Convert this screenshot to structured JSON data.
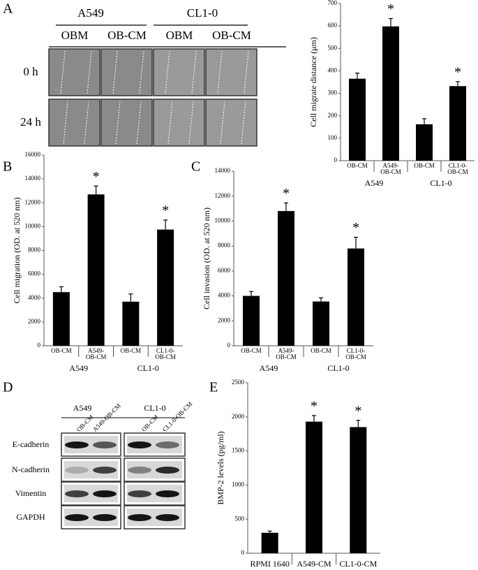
{
  "panel_labels": [
    "A",
    "B",
    "C",
    "D",
    "E"
  ],
  "wound_assay": {
    "groups": [
      "A549",
      "CL1-0"
    ],
    "conditions": [
      "OBM",
      "OB-CM",
      "OBM",
      "OB-CM"
    ],
    "times": [
      "0 h",
      "24 h"
    ]
  },
  "western_blot": {
    "groups": [
      "A549",
      "CL1-0"
    ],
    "lanes": [
      "OB-CM",
      "A549-OB-CM",
      "OB-CM",
      "CL1-0-OB-CM"
    ],
    "proteins": [
      "E-cadherin",
      "N-cadherin",
      "Vimentin",
      "GAPDH"
    ]
  },
  "chart_data": [
    {
      "type": "bar",
      "y_label": "Cell migrate distance (μm)",
      "categories": [
        [
          "OB-CM"
        ],
        [
          "A549-",
          "OB-CM"
        ],
        [
          "OB-CM"
        ],
        [
          "CL1-0-",
          "OB-CM"
        ]
      ],
      "group_labels": [
        "A549",
        "CL1-0"
      ],
      "values": [
        365,
        598,
        162,
        332
      ],
      "errors": [
        25,
        35,
        25,
        20
      ],
      "markers": [
        null,
        "*",
        null,
        "*"
      ],
      "color": "#000000",
      "ylim": [
        0,
        700
      ],
      "yticks": [
        0,
        100,
        200,
        300,
        400,
        500,
        600,
        700
      ]
    },
    {
      "type": "bar",
      "y_label": "Cell migration (OD. at 520 nm)",
      "categories": [
        [
          "OB-CM"
        ],
        [
          "A549-",
          "OB-CM"
        ],
        [
          "OB-CM"
        ],
        [
          "CL1-0-",
          "OB-CM"
        ]
      ],
      "group_labels": [
        "A549",
        "CL1-0"
      ],
      "values": [
        4500,
        12700,
        3700,
        9750
      ],
      "errors": [
        450,
        700,
        650,
        800
      ],
      "markers": [
        null,
        "*",
        null,
        "*"
      ],
      "color": "#000000",
      "ylim": [
        0,
        16000
      ],
      "yticks": [
        0,
        2000,
        4000,
        6000,
        8000,
        10000,
        12000,
        14000,
        16000
      ]
    },
    {
      "type": "bar",
      "y_label": "Cell invasion (OD. at 520 nm)",
      "categories": [
        [
          "OB-CM"
        ],
        [
          "A549-",
          "OB-CM"
        ],
        [
          "OB-CM"
        ],
        [
          "CL1-0-",
          "OB-CM"
        ]
      ],
      "group_labels": [
        "A549",
        "CL1-0"
      ],
      "values": [
        4000,
        10800,
        3550,
        7800
      ],
      "errors": [
        350,
        650,
        300,
        900
      ],
      "markers": [
        null,
        "*",
        null,
        "*"
      ],
      "color": "#000000",
      "ylim": [
        0,
        14000
      ],
      "yticks": [
        0,
        2000,
        4000,
        6000,
        8000,
        10000,
        12000,
        14000
      ]
    },
    {
      "type": "bar",
      "y_label": "BMP-2 levels (pg/ml)",
      "categories": [
        [
          "RPMI 1640"
        ],
        [
          "A549-CM"
        ],
        [
          "CL1-0-CM"
        ]
      ],
      "values": [
        300,
        1930,
        1850
      ],
      "errors": [
        25,
        90,
        100
      ],
      "markers": [
        null,
        "*",
        "*"
      ],
      "color": "#000000",
      "ylim": [
        0,
        2500
      ],
      "yticks": [
        0,
        500,
        1000,
        1500,
        2000,
        2500
      ]
    }
  ]
}
